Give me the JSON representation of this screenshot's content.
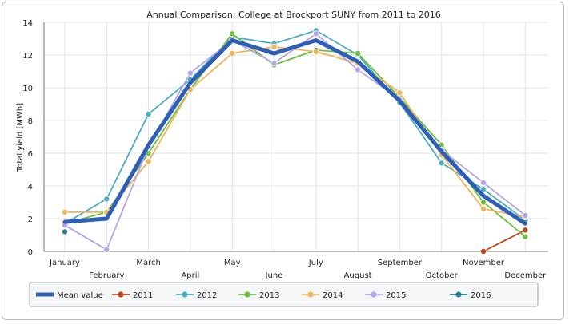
{
  "chart_data": {
    "type": "line",
    "title": "Annual Comparison: College at Brockport SUNY from 2011 to 2016",
    "xlabel": "",
    "ylabel": "Total yield [MWh]",
    "ylim": [
      0,
      14
    ],
    "yticks": [
      0,
      2,
      4,
      6,
      8,
      10,
      12,
      14
    ],
    "grid": true,
    "legend_position": "bottom",
    "categories": [
      "January",
      "February",
      "March",
      "April",
      "May",
      "June",
      "July",
      "August",
      "September",
      "October",
      "November",
      "December"
    ],
    "series": [
      {
        "name": "Mean value",
        "color": "#2e5fb8",
        "values": [
          1.8,
          2.0,
          6.5,
          10.3,
          12.9,
          12.1,
          12.9,
          11.6,
          9.2,
          6.1,
          3.4,
          1.7
        ]
      },
      {
        "name": "2011",
        "color": "#c0441c",
        "values": [
          null,
          null,
          null,
          null,
          null,
          null,
          null,
          null,
          null,
          null,
          0.0,
          1.3
        ]
      },
      {
        "name": "2012",
        "color": "#4aaec0",
        "values": [
          1.7,
          3.2,
          8.4,
          10.5,
          13.1,
          12.7,
          13.5,
          12.0,
          9.1,
          5.4,
          3.8,
          1.9
        ]
      },
      {
        "name": "2013",
        "color": "#6dbf3b",
        "values": [
          1.7,
          2.4,
          6.0,
          9.9,
          13.3,
          11.4,
          12.3,
          12.1,
          9.4,
          6.5,
          3.0,
          0.9
        ]
      },
      {
        "name": "2014",
        "color": "#f0b55a",
        "values": [
          2.4,
          2.4,
          5.5,
          9.9,
          12.1,
          12.5,
          12.2,
          11.5,
          9.7,
          5.9,
          2.6,
          2.1
        ]
      },
      {
        "name": "2015",
        "color": "#b6a4e6",
        "values": [
          1.6,
          0.1,
          6.4,
          10.9,
          12.9,
          11.5,
          13.3,
          11.1,
          9.3,
          6.2,
          4.2,
          2.2
        ]
      },
      {
        "name": "2016",
        "color": "#2a8090",
        "values": [
          1.2,
          null,
          null,
          null,
          null,
          null,
          null,
          null,
          null,
          null,
          null,
          null
        ]
      }
    ]
  },
  "colors": {
    "grid": "#dfe3e8",
    "axis": "#707070",
    "legend_border": "#99a3ad",
    "legend_bg": "#f4f6f8"
  }
}
